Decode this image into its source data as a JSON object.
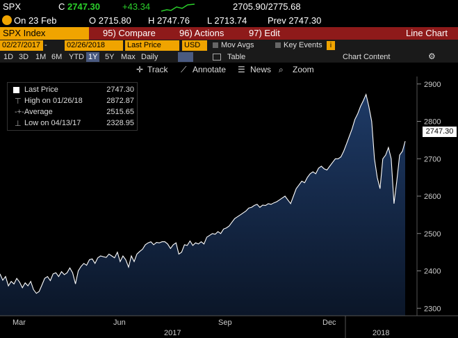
{
  "quote": {
    "ticker": "SPX",
    "flag": "C",
    "last": "2747.30",
    "change": "+43.34",
    "range": "2705.90/2775.68",
    "date_label": "On 23 Feb",
    "open": "O 2715.80",
    "high": "H 2747.76",
    "low": "L 2713.74",
    "prev": "Prev 2747.30"
  },
  "menu": {
    "security": "SPX Index",
    "compare": "95) Compare",
    "actions": "96) Actions",
    "edit": "97) Edit",
    "view": "Line Chart"
  },
  "dates": {
    "start": "02/27/2017",
    "end": "02/26/2018",
    "field": "Last Price",
    "currency": "USD",
    "mov_avgs": "Mov Avgs",
    "key_events": "Key Events"
  },
  "periods": {
    "items": [
      "1D",
      "3D",
      "1M",
      "6M",
      "YTD",
      "1Y",
      "5Y",
      "Max"
    ],
    "selected": "1Y",
    "frequency": "Daily",
    "table": "Table",
    "chart_content": "Chart Content"
  },
  "tools": {
    "track": "Track",
    "annotate": "Annotate",
    "news": "News",
    "zoom": "Zoom"
  },
  "legend": {
    "last_label": "Last Price",
    "last_value": "2747.30",
    "high_label": "High on 01/26/18",
    "high_value": "2872.87",
    "avg_label": "Average",
    "avg_value": "2515.65",
    "low_label": "Low on 04/13/17",
    "low_value": "2328.95"
  },
  "last_tag": "2747.30",
  "colors": {
    "amber": "#f0a400",
    "green": "#2bd12b",
    "menu_red": "#8e1a1a",
    "area_fill": "#13284a"
  },
  "chart_data": {
    "type": "area",
    "series": [
      {
        "values": [
          2392,
          2375,
          2385,
          2360,
          2372,
          2365,
          2380,
          2370,
          2355,
          2368,
          2360,
          2372,
          2350,
          2340,
          2345,
          2362,
          2380,
          2385,
          2374,
          2392,
          2395,
          2385,
          2398,
          2390,
          2395,
          2408,
          2395,
          2365,
          2400,
          2412,
          2420,
          2415,
          2430,
          2432,
          2420,
          2435,
          2440,
          2438,
          2436,
          2445,
          2440,
          2435,
          2450,
          2425,
          2440,
          2430,
          2410,
          2440,
          2425,
          2445,
          2452,
          2458,
          2470,
          2475,
          2478,
          2470,
          2476,
          2475,
          2478,
          2478,
          2472,
          2460,
          2470,
          2475,
          2445,
          2450,
          2470,
          2468,
          2480,
          2468,
          2475,
          2472,
          2478,
          2472,
          2490,
          2495,
          2500,
          2498,
          2505,
          2500,
          2512,
          2515,
          2520,
          2530,
          2540,
          2545,
          2550,
          2555,
          2560,
          2568,
          2570,
          2575,
          2578,
          2570,
          2576,
          2575,
          2580,
          2578,
          2582,
          2585,
          2590,
          2595,
          2600,
          2590,
          2580,
          2600,
          2620,
          2630,
          2640,
          2636,
          2650,
          2660,
          2665,
          2660,
          2675,
          2680,
          2673,
          2670,
          2680,
          2690,
          2700,
          2700,
          2705,
          2720,
          2740,
          2760,
          2780,
          2805,
          2820,
          2840,
          2855,
          2872,
          2840,
          2800,
          2700,
          2650,
          2620,
          2700,
          2710,
          2730,
          2700,
          2580,
          2640,
          2710,
          2720,
          2747
        ]
      }
    ],
    "x_labels": [
      "Mar",
      "Jun",
      "Sep",
      "Dec",
      "2017",
      "2018"
    ],
    "y_ticks": [
      2300,
      2400,
      2500,
      2600,
      2700,
      2800,
      2900
    ],
    "ylim": [
      2280,
      2920
    ],
    "grid": false
  }
}
